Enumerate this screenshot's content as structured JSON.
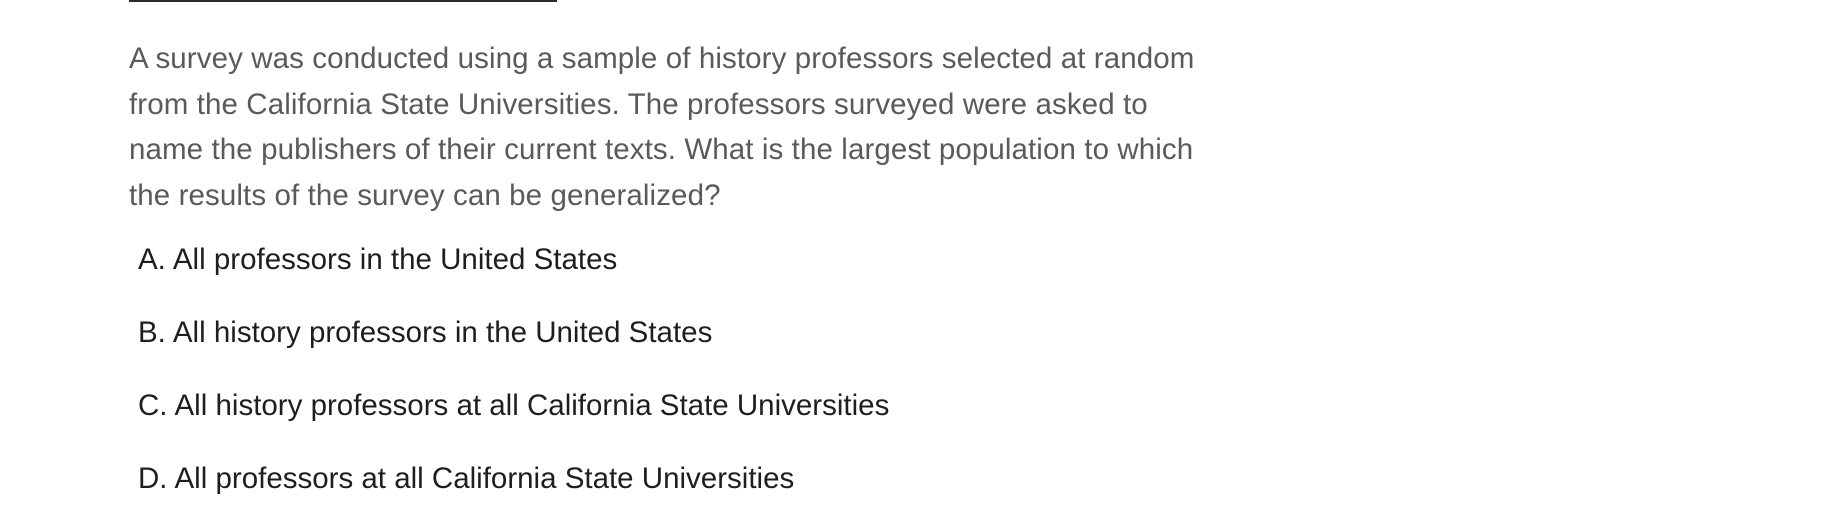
{
  "question": {
    "text": "A survey was conducted using a sample of history professors selected at random from the California State Universities. The professors surveyed were asked to name the publishers of their current texts. What is the largest population to which the results of the survey can be generalized?"
  },
  "options": [
    {
      "letter": "A.",
      "text": "All professors in the United States"
    },
    {
      "letter": "B.",
      "text": "All history professors in the United States"
    },
    {
      "letter": "C.",
      "text": "All history professors at all California State Universities"
    },
    {
      "letter": "D.",
      "text": "All professors at all California State Universities"
    }
  ]
}
